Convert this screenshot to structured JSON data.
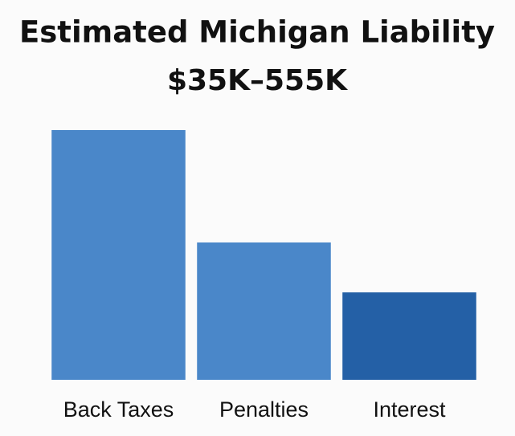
{
  "chart_data": {
    "type": "bar",
    "title": "Estimated Michigan Liability",
    "subtitle": "$35K–555K",
    "categories": [
      "Back Taxes",
      "Penalties",
      "Interest"
    ],
    "values": [
      100,
      55,
      35
    ],
    "colors": [
      "#4a87c9",
      "#4a87c9",
      "#2460a6"
    ]
  }
}
